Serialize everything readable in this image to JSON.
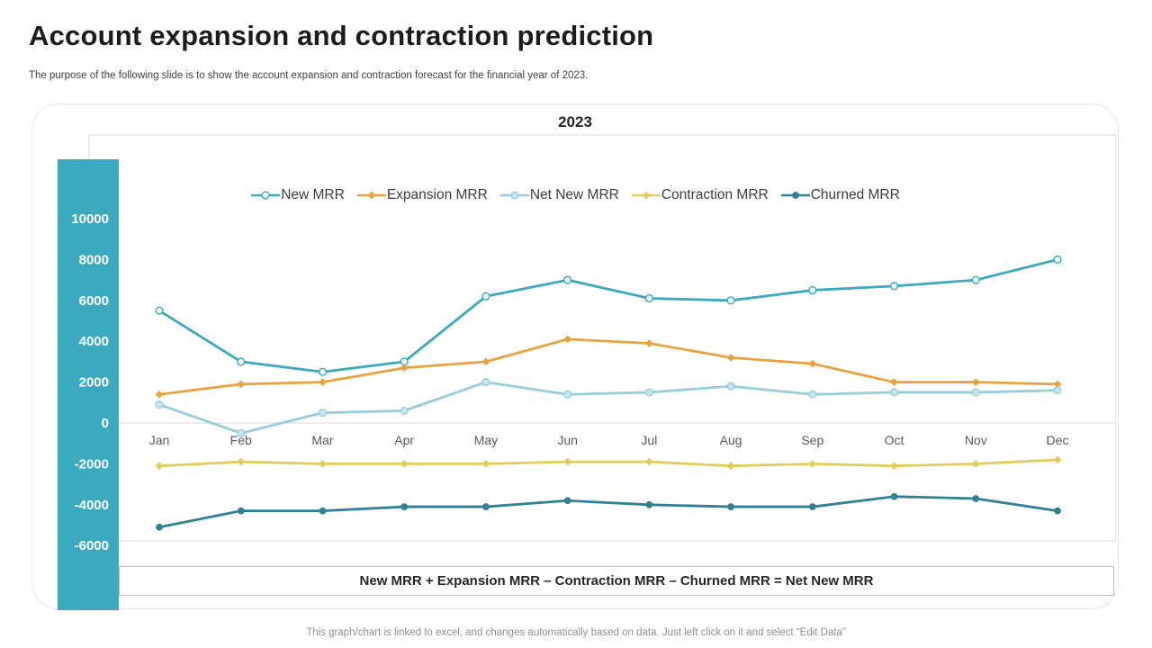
{
  "page": {
    "title": "Account expansion and contraction prediction",
    "subtitle": "The purpose of the following slide is to show the account expansion and contraction forecast for the financial year of 2023.",
    "footer": "This graph/chart is linked to excel, and changes automatically based on data. Just left click on it and select “Edit Data”"
  },
  "formula": "New MRR + Expansion MRR – Contraction MRR – Churned MRR = Net New MRR",
  "chart_data": {
    "type": "line",
    "title": "2023",
    "categories": [
      "Jan",
      "Feb",
      "Mar",
      "Apr",
      "May",
      "Jun",
      "Jul",
      "Aug",
      "Sep",
      "Oct",
      "Nov",
      "Dec"
    ],
    "series": [
      {
        "name": "New MRR",
        "color": "#3BA9BE",
        "marker": "open-circle",
        "values": [
          5500,
          3000,
          2500,
          3000,
          6200,
          7000,
          6100,
          6000,
          6500,
          6700,
          7000,
          8000
        ]
      },
      {
        "name": "Expansion MRR",
        "color": "#E8A33E",
        "marker": "diamond",
        "values": [
          1400,
          1900,
          2000,
          2700,
          3000,
          4100,
          3900,
          3200,
          2900,
          2000,
          2000,
          1900
        ]
      },
      {
        "name": "Net New MRR",
        "color": "#96CEDD",
        "marker": "light-circle",
        "values": [
          900,
          -500,
          500,
          600,
          2000,
          1400,
          1500,
          1800,
          1400,
          1500,
          1500,
          1600
        ]
      },
      {
        "name": "Contraction MRR",
        "color": "#E2CC5C",
        "marker": "diamond",
        "values": [
          -2100,
          -1900,
          -2000,
          -2000,
          -2000,
          -1900,
          -1900,
          -2100,
          -2000,
          -2100,
          -2000,
          -1800
        ]
      },
      {
        "name": "Churned MRR",
        "color": "#2E8294",
        "marker": "circle",
        "values": [
          -5100,
          -4300,
          -4300,
          -4100,
          -4100,
          -3800,
          -4000,
          -4100,
          -4100,
          -3600,
          -3700,
          -4300
        ]
      }
    ],
    "y_ticks": [
      10000,
      8000,
      6000,
      4000,
      2000,
      0,
      -2000,
      -4000,
      -6000
    ],
    "ylim": [
      -6000,
      14000
    ],
    "xlabel": "",
    "ylabel": "",
    "legend_position": "top",
    "grid": "zero-and-bottom-lines-only",
    "axis_band_color": "#3BAABF",
    "axis_label_color": "#ffffff",
    "month_label_color": "#595959"
  }
}
